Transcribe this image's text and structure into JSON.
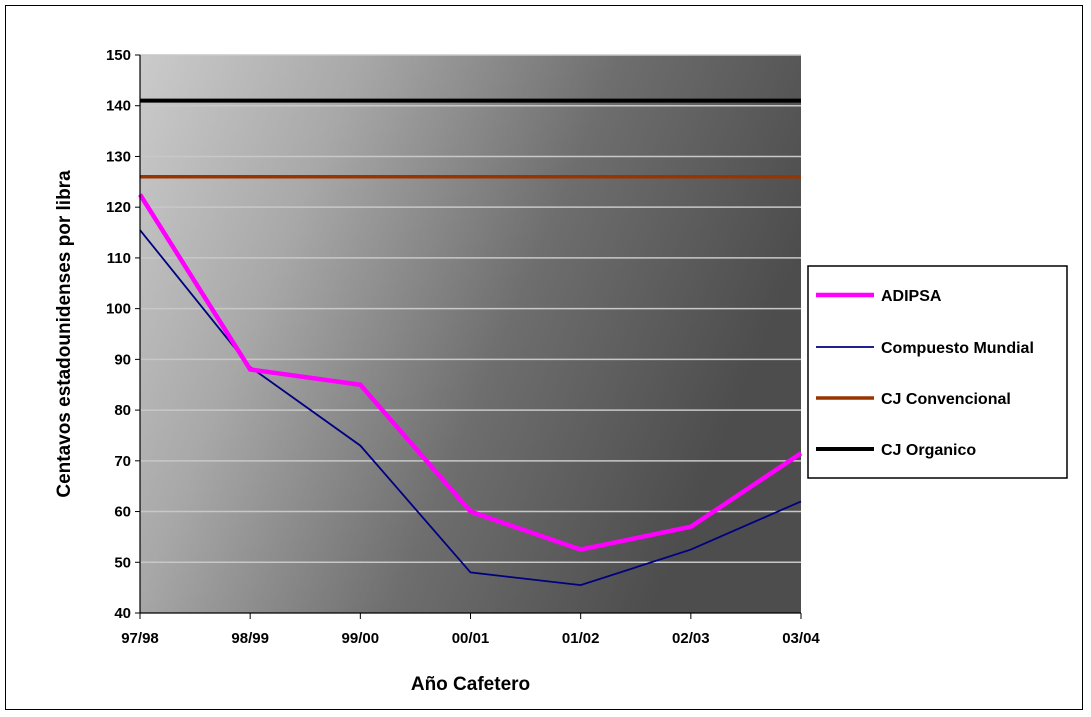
{
  "chart_data": {
    "type": "line",
    "title": "",
    "xlabel": "Año Cafetero",
    "ylabel": "Centavos estadounidenses por libra",
    "categories": [
      "97/98",
      "98/99",
      "99/00",
      "00/01",
      "01/02",
      "02/03",
      "03/04"
    ],
    "ylim": [
      40,
      150
    ],
    "yticks": [
      40,
      50,
      60,
      70,
      80,
      90,
      100,
      110,
      120,
      130,
      140,
      150
    ],
    "grid": true,
    "legend_position": "right",
    "series": [
      {
        "name": "ADIPSA",
        "values": [
          122.5,
          88,
          85,
          60,
          52.5,
          57,
          71.5
        ],
        "color": "#ff00ff"
      },
      {
        "name": "Compuesto Mundial",
        "values": [
          115.5,
          88.5,
          73,
          48,
          45.5,
          52.5,
          62
        ],
        "color": "#000080"
      },
      {
        "name": "CJ Convencional",
        "values": [
          126,
          126,
          126,
          126,
          126,
          126,
          126
        ],
        "color": "#993300"
      },
      {
        "name": "CJ Organico",
        "values": [
          141,
          141,
          141,
          141,
          141,
          141,
          141
        ],
        "color": "#000000"
      }
    ]
  }
}
